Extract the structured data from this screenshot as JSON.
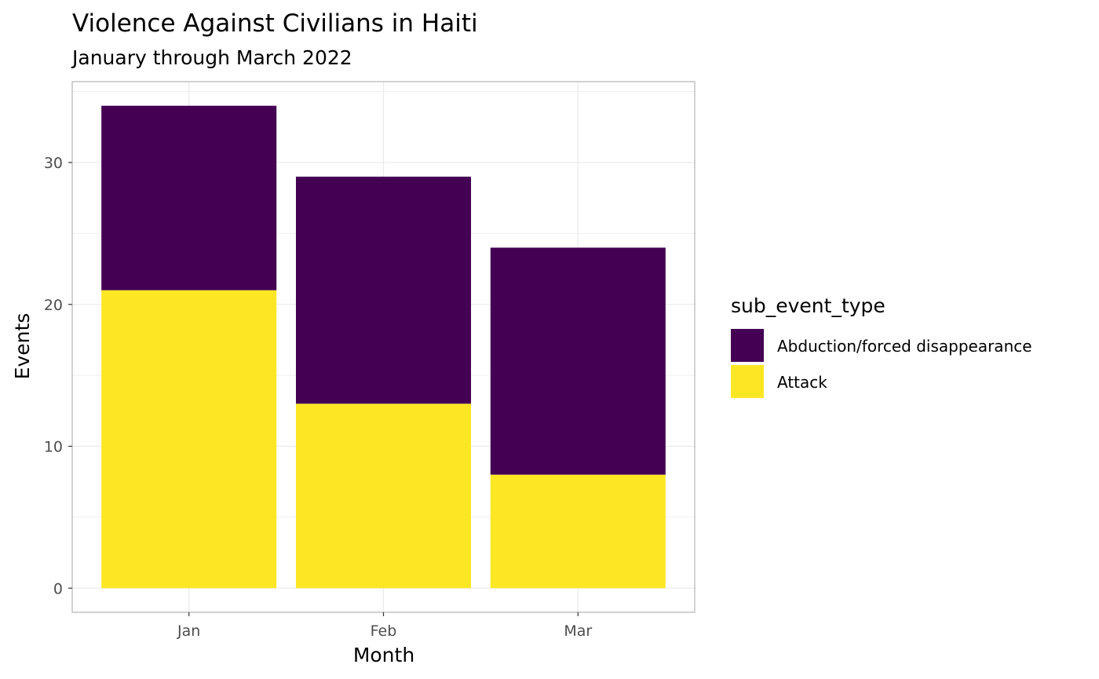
{
  "chart_data": {
    "type": "bar",
    "stacked": true,
    "title": "Violence Against Civilians in Haiti",
    "subtitle": "January through March 2022",
    "xlabel": "Month",
    "ylabel": "Events",
    "categories": [
      "Jan",
      "Feb",
      "Mar"
    ],
    "series": [
      {
        "name": "Attack",
        "color": "#FDE725",
        "values": [
          21,
          13,
          8
        ]
      },
      {
        "name": "Abduction/forced disappearance",
        "color": "#440154",
        "values": [
          13,
          16,
          16
        ]
      }
    ],
    "totals": [
      34,
      29,
      24
    ],
    "ylim": [
      -1.7,
      35.7
    ],
    "yticks": [
      0,
      10,
      20,
      30
    ],
    "grid": true,
    "legend": {
      "title": "sub_event_type",
      "position": "right",
      "entries": [
        {
          "label": "Abduction/forced disappearance",
          "color": "#440154"
        },
        {
          "label": "Attack",
          "color": "#FDE725"
        }
      ]
    }
  }
}
